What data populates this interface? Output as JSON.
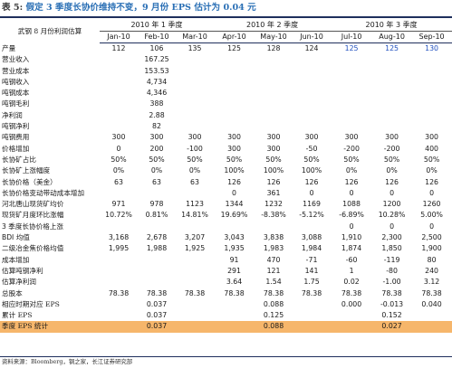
{
  "title": {
    "prefix": "表 5:",
    "text": "假定 3 季度长协价维持不变，9 月份 EPS 估计为 0.04 元"
  },
  "header": {
    "label": "武钢 8 月份利润估算",
    "groups": [
      "2010 年 1 季度",
      "2010 年 2 季度",
      "2010 年 3 季度"
    ],
    "months": [
      "Jan-10",
      "Feb-10",
      "Mar-10",
      "Apr-10",
      "May-10",
      "Jun-10",
      "Jul-10",
      "Aug-10",
      "Sep-10"
    ]
  },
  "rows": [
    {
      "label": "产量",
      "values": [
        "112",
        "106",
        "135",
        "125",
        "128",
        "124",
        "125",
        "125",
        "130"
      ]
    },
    {
      "label": "营业收入",
      "values": [
        "",
        "167.25",
        "",
        "",
        "",
        "",
        "",
        "",
        ""
      ]
    },
    {
      "label": "营业成本",
      "values": [
        "",
        "153.53",
        "",
        "",
        "",
        "",
        "",
        "",
        ""
      ]
    },
    {
      "label": "吨钢收入",
      "values": [
        "",
        "4,734",
        "",
        "",
        "",
        "",
        "",
        "",
        ""
      ]
    },
    {
      "label": "吨钢成本",
      "values": [
        "",
        "4,346",
        "",
        "",
        "",
        "",
        "",
        "",
        ""
      ]
    },
    {
      "label": "吨钢毛利",
      "values": [
        "",
        "388",
        "",
        "",
        "",
        "",
        "",
        "",
        ""
      ]
    },
    {
      "label": "净利润",
      "values": [
        "",
        "2.88",
        "",
        "",
        "",
        "",
        "",
        "",
        ""
      ]
    },
    {
      "label": "吨钢净利",
      "values": [
        "",
        "82",
        "",
        "",
        "",
        "",
        "",
        "",
        ""
      ]
    },
    {
      "label": "吨钢费用",
      "values": [
        "300",
        "300",
        "300",
        "300",
        "300",
        "300",
        "300",
        "300",
        "300"
      ]
    },
    {
      "label": "价格增加",
      "values": [
        "0",
        "200",
        "-100",
        "300",
        "300",
        "-50",
        "-200",
        "-200",
        "400"
      ]
    },
    {
      "label": "长协矿占比",
      "values": [
        "50%",
        "50%",
        "50%",
        "50%",
        "50%",
        "50%",
        "50%",
        "50%",
        "50%"
      ]
    },
    {
      "label": "长协矿上涨幅度",
      "values": [
        "0%",
        "0%",
        "0%",
        "100%",
        "100%",
        "100%",
        "0%",
        "0%",
        "0%"
      ]
    },
    {
      "label": "长协价格（美金）",
      "values": [
        "63",
        "63",
        "63",
        "126",
        "126",
        "126",
        "126",
        "126",
        "126"
      ]
    },
    {
      "label": "长协价格变动带动成本增加",
      "values": [
        "",
        "",
        "",
        "0",
        "361",
        "0",
        "0",
        "0",
        "0"
      ]
    },
    {
      "label": "河北唐山现货矿均价",
      "values": [
        "971",
        "978",
        "1123",
        "1344",
        "1232",
        "1169",
        "1088",
        "1200",
        "1260"
      ]
    },
    {
      "label": "现货矿月度环比涨幅",
      "values": [
        "10.72%",
        "0.81%",
        "14.81%",
        "19.69%",
        "-8.38%",
        "-5.12%",
        "-6.89%",
        "10.28%",
        "5.00%"
      ]
    },
    {
      "label": "3 季度长协价格上涨",
      "sans": true,
      "values": [
        "",
        "",
        "",
        "",
        "",
        "",
        "0",
        "0",
        "0"
      ]
    },
    {
      "label": "BDI 均值",
      "sans": true,
      "values": [
        "3,168",
        "2,678",
        "3,207",
        "3,043",
        "3,838",
        "3,088",
        "1,910",
        "2,300",
        "2,500"
      ]
    },
    {
      "label": "二级冶金焦价格均值",
      "values": [
        "1,995",
        "1,988",
        "1,925",
        "1,935",
        "1,983",
        "1,984",
        "1,874",
        "1,850",
        "1,900"
      ]
    },
    {
      "label": "成本增加",
      "values": [
        "",
        "",
        "",
        "91",
        "470",
        "-71",
        "-60",
        "-119",
        "80"
      ]
    },
    {
      "label": "估算吨钢净利",
      "values": [
        "",
        "",
        "",
        "291",
        "121",
        "141",
        "1",
        "-80",
        "240"
      ]
    },
    {
      "label": "估算净利润",
      "values": [
        "",
        "",
        "",
        "3.64",
        "1.54",
        "1.75",
        "0.02",
        "-1.00",
        "3.12"
      ]
    },
    {
      "label": "总股本",
      "values": [
        "78.38",
        "78.38",
        "78.38",
        "78.38",
        "78.38",
        "78.38",
        "78.38",
        "78.38",
        "78.38"
      ]
    },
    {
      "label": "相应时期对应 EPS",
      "values": [
        "",
        "0.037",
        "",
        "",
        "0.088",
        "",
        "0.000",
        "-0.013",
        "0.040"
      ]
    },
    {
      "label": "累计 EPS",
      "values": [
        "",
        "0.037",
        "",
        "",
        "0.125",
        "",
        "",
        "0.152",
        ""
      ]
    },
    {
      "label": "季度 EPS 统计",
      "highlight": true,
      "values": [
        "",
        "0.037",
        "",
        "",
        "0.088",
        "",
        "",
        "0.027",
        ""
      ]
    }
  ],
  "source": "资料来源：Bloomberg，钢之家，长江证券研究部",
  "colors": {
    "title_blue": "#2a6fb5",
    "q3_blue": "#1f4fbf",
    "highlight": "#f6b66b",
    "rule": "#1f2f5c"
  }
}
